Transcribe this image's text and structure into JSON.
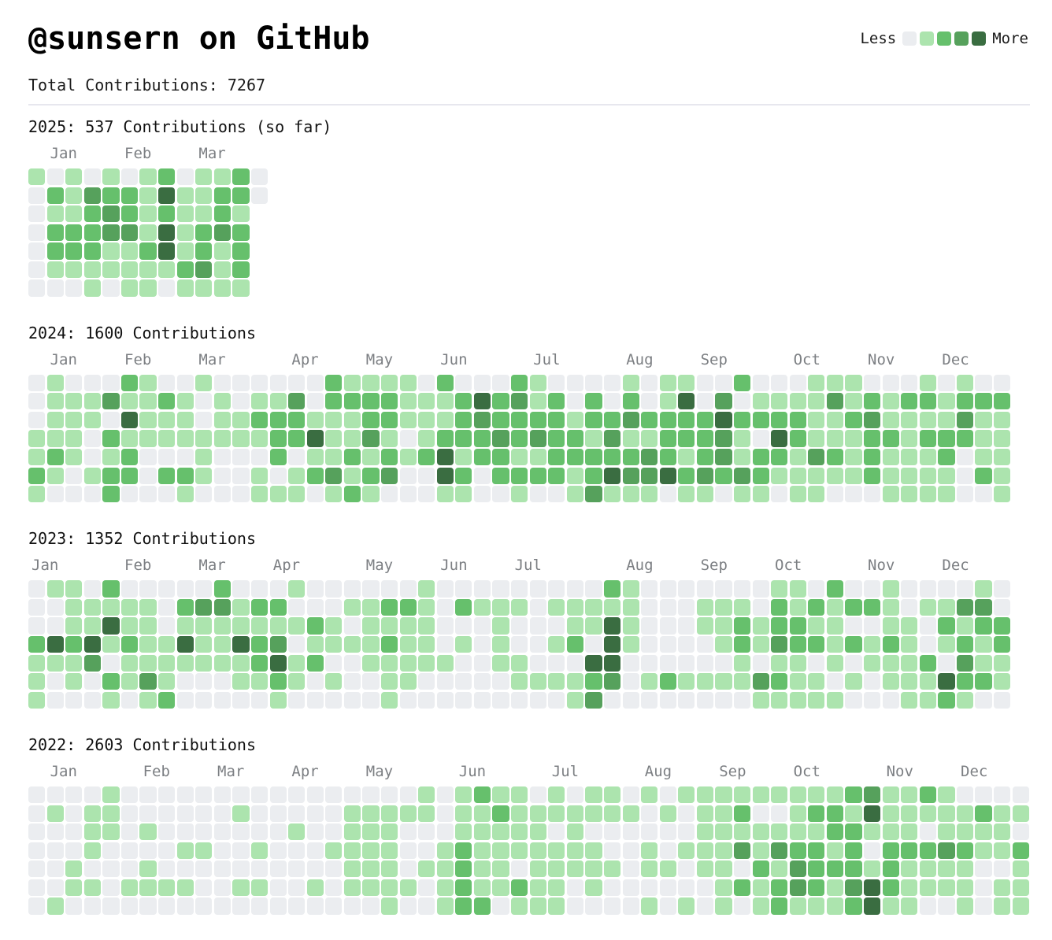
{
  "header": {
    "title": "@sunsern on GitHub",
    "total_label": "Total Contributions: 7267"
  },
  "legend": {
    "less_label": "Less",
    "more_label": "More",
    "colors": [
      "#ebedf0",
      "#ace4ae",
      "#66c06c",
      "#56a15c",
      "#3a6d41"
    ]
  },
  "chart_data": {
    "type": "heatmap",
    "title": "@sunsern on GitHub",
    "total_contributions": 7267,
    "legend_levels": [
      0,
      1,
      2,
      3,
      4
    ],
    "level_colors": [
      "#ebedf0",
      "#ace4ae",
      "#66c06c",
      "#56a15c",
      "#3a6d41"
    ],
    "weekday_rows_note": "7 strings per year = Sun..Sat rows; digit = contribution level 0-4 per week column; x = no cell",
    "years": [
      {
        "year": 2025,
        "contributions": 537,
        "title": "2025: 537 Contributions (so far)",
        "weeks": 13,
        "months": [
          {
            "label": "Jan",
            "col": 1
          },
          {
            "label": "Feb",
            "col": 5
          },
          {
            "label": "Mar",
            "col": 9
          }
        ],
        "rows": [
          "1010101201120",
          "0213221411220",
          "011232121121x",
          "022233141232x",
          "022211241212x",
          "011111112312x",
          "000101101111x"
        ]
      },
      {
        "year": 2024,
        "contributions": 1600,
        "title": "2024: 1600 Contributions",
        "weeks": 53,
        "months": [
          {
            "label": "Jan",
            "col": 1
          },
          {
            "label": "Feb",
            "col": 5
          },
          {
            "label": "Mar",
            "col": 9
          },
          {
            "label": "Apr",
            "col": 14
          },
          {
            "label": "May",
            "col": 18
          },
          {
            "label": "Jun",
            "col": 22
          },
          {
            "label": "Jul",
            "col": 27
          },
          {
            "label": "Aug",
            "col": 32
          },
          {
            "label": "Sep",
            "col": 36
          },
          {
            "label": "Oct",
            "col": 41
          },
          {
            "label": "Nov",
            "col": 45
          },
          {
            "label": "Dec",
            "col": 49
          }
        ],
        "rows": [
          "01000210010000002111102000210000101100200011100010100",
          "01113112101011302222111242312020201403011113121221222",
          "01110411101122211122111232222122322224222211231111311",
          "11102111111112241131012223232213112223104211122122211",
          "12101200010002011212124122112222232123122132121112011",
          "21012202210010123123004202222124334232321111121111021",
          "10002000100011101210001100100131110110110110001111001"
        ]
      },
      {
        "year": 2023,
        "contributions": 1352,
        "title": "2023: 1352 Contributions",
        "weeks": 53,
        "months": [
          {
            "label": "Jan",
            "col": 0
          },
          {
            "label": "Feb",
            "col": 5
          },
          {
            "label": "Mar",
            "col": 9
          },
          {
            "label": "Apr",
            "col": 13
          },
          {
            "label": "May",
            "col": 18
          },
          {
            "label": "Jun",
            "col": 22
          },
          {
            "label": "Jul",
            "col": 26
          },
          {
            "label": "Aug",
            "col": 32
          },
          {
            "label": "Sep",
            "col": 36
          },
          {
            "label": "Oct",
            "col": 40
          },
          {
            "label": "Nov",
            "col": 45
          },
          {
            "label": "Dec",
            "col": 49
          }
        ],
        "rows": [
          "01102000002000100000010000000002100000001102001000010",
          "00111110233122000112210211101111100011102121221011330",
          "00114110111111121011110001000114100011212211001102122",
          "24241211411423011112110101001204100001213221212101212",
          "11130111111124120011111001100044000000101101011120311",
          "10102131000112101001100000111123012111132110101114221",
          "10001012000001000001000000000130000000011111000112100"
        ]
      },
      {
        "year": 2022,
        "contributions": 2603,
        "title": "2022: 2603 Contributions",
        "weeks": 54,
        "months": [
          {
            "label": "Jan",
            "col": 1
          },
          {
            "label": "Feb",
            "col": 6
          },
          {
            "label": "Mar",
            "col": 10
          },
          {
            "label": "Apr",
            "col": 14
          },
          {
            "label": "May",
            "col": 18
          },
          {
            "label": "Jun",
            "col": 23
          },
          {
            "label": "Jul",
            "col": 28
          },
          {
            "label": "Aug",
            "col": 33
          },
          {
            "label": "Sep",
            "col": 37
          },
          {
            "label": "Oct",
            "col": 41
          },
          {
            "label": "Nov",
            "col": 46
          },
          {
            "label": "Dec",
            "col": 50
          }
        ],
        "rows": [
          "000010000000000000000101211010110101111111112311210000",
          "010110000001000001111101121111111010112001221411111211",
          "000110100000001001110001111101000000111111122111011110",
          "000100001100100011110012111111100101113132212022232112",
          "001000100000000001110112110111110110110213222121111001",
          "001101111001100101111012112110100000012123213421111011",
          "010000000000000000010012201110000101010121112411001011"
        ]
      }
    ]
  }
}
